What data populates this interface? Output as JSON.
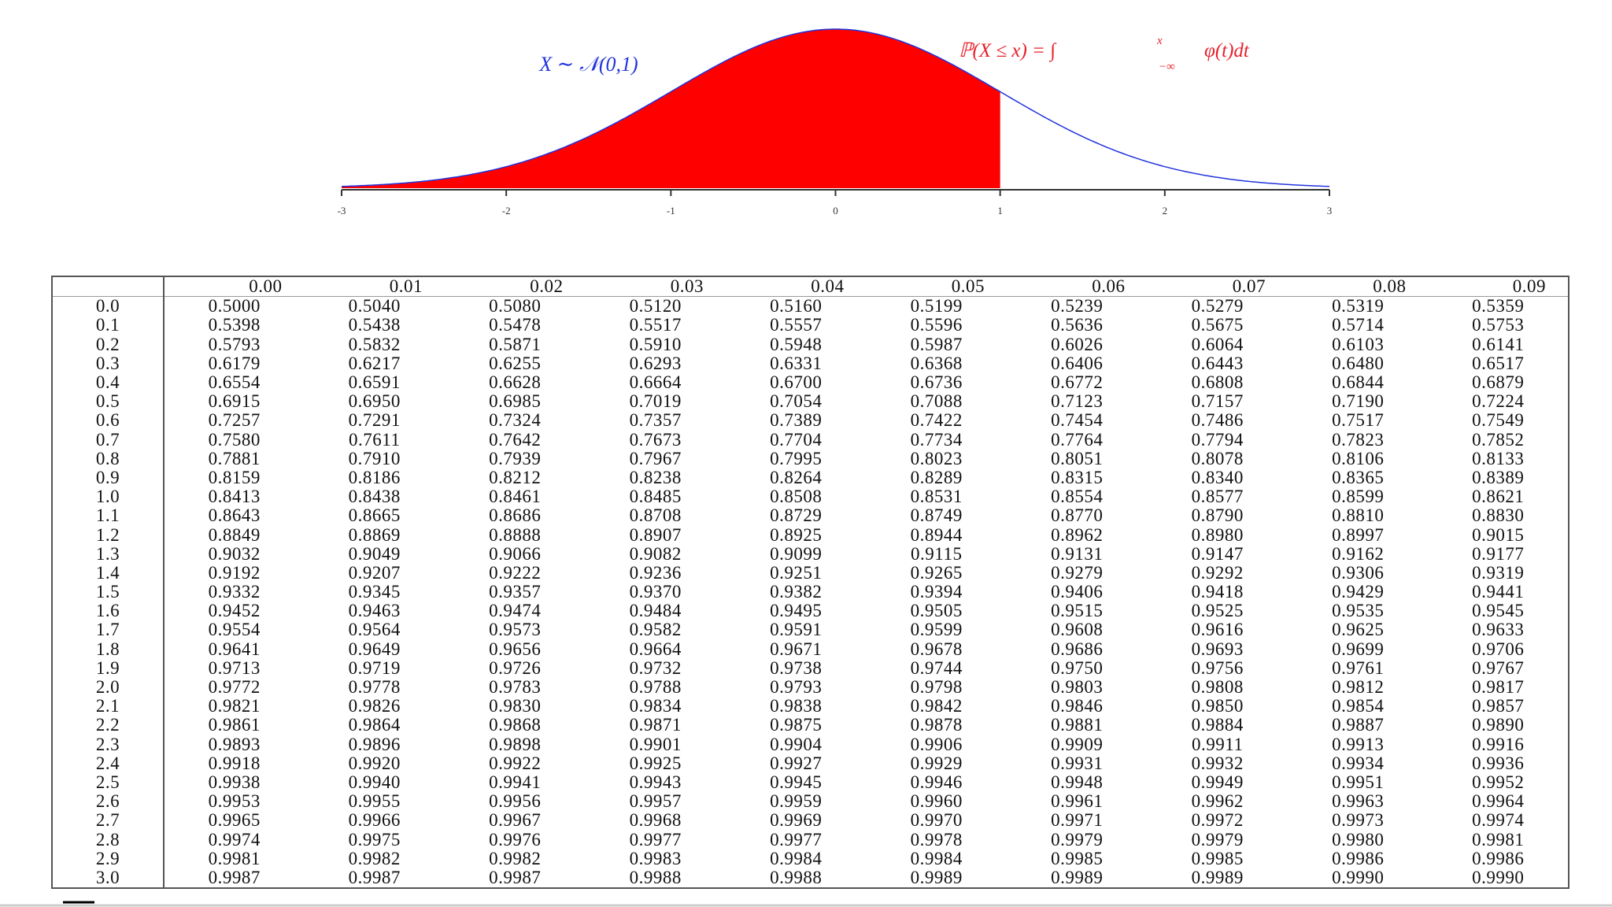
{
  "figure": {
    "annotations": {
      "distribution": "X ∼ 𝒩(0,1)",
      "cdf_lhs": "ℙ(X ≤ x) = ∫",
      "cdf_upper": "x",
      "cdf_lower": "−∞",
      "cdf_rhs": "φ(t)dt"
    },
    "xticks": [
      -3,
      -2,
      -1,
      0,
      1,
      2,
      3
    ],
    "shaded_to": 1
  },
  "table": {
    "columns": [
      "0.00",
      "0.01",
      "0.02",
      "0.03",
      "0.04",
      "0.05",
      "0.06",
      "0.07",
      "0.08",
      "0.09"
    ],
    "rows": [
      {
        "label": "0.0",
        "values": [
          "0.5000",
          "0.5040",
          "0.5080",
          "0.5120",
          "0.5160",
          "0.5199",
          "0.5239",
          "0.5279",
          "0.5319",
          "0.5359"
        ]
      },
      {
        "label": "0.1",
        "values": [
          "0.5398",
          "0.5438",
          "0.5478",
          "0.5517",
          "0.5557",
          "0.5596",
          "0.5636",
          "0.5675",
          "0.5714",
          "0.5753"
        ]
      },
      {
        "label": "0.2",
        "values": [
          "0.5793",
          "0.5832",
          "0.5871",
          "0.5910",
          "0.5948",
          "0.5987",
          "0.6026",
          "0.6064",
          "0.6103",
          "0.6141"
        ]
      },
      {
        "label": "0.3",
        "values": [
          "0.6179",
          "0.6217",
          "0.6255",
          "0.6293",
          "0.6331",
          "0.6368",
          "0.6406",
          "0.6443",
          "0.6480",
          "0.6517"
        ]
      },
      {
        "label": "0.4",
        "values": [
          "0.6554",
          "0.6591",
          "0.6628",
          "0.6664",
          "0.6700",
          "0.6736",
          "0.6772",
          "0.6808",
          "0.6844",
          "0.6879"
        ]
      },
      {
        "label": "0.5",
        "values": [
          "0.6915",
          "0.6950",
          "0.6985",
          "0.7019",
          "0.7054",
          "0.7088",
          "0.7123",
          "0.7157",
          "0.7190",
          "0.7224"
        ]
      },
      {
        "label": "0.6",
        "values": [
          "0.7257",
          "0.7291",
          "0.7324",
          "0.7357",
          "0.7389",
          "0.7422",
          "0.7454",
          "0.7486",
          "0.7517",
          "0.7549"
        ]
      },
      {
        "label": "0.7",
        "values": [
          "0.7580",
          "0.7611",
          "0.7642",
          "0.7673",
          "0.7704",
          "0.7734",
          "0.7764",
          "0.7794",
          "0.7823",
          "0.7852"
        ]
      },
      {
        "label": "0.8",
        "values": [
          "0.7881",
          "0.7910",
          "0.7939",
          "0.7967",
          "0.7995",
          "0.8023",
          "0.8051",
          "0.8078",
          "0.8106",
          "0.8133"
        ]
      },
      {
        "label": "0.9",
        "values": [
          "0.8159",
          "0.8186",
          "0.8212",
          "0.8238",
          "0.8264",
          "0.8289",
          "0.8315",
          "0.8340",
          "0.8365",
          "0.8389"
        ]
      },
      {
        "label": "1.0",
        "values": [
          "0.8413",
          "0.8438",
          "0.8461",
          "0.8485",
          "0.8508",
          "0.8531",
          "0.8554",
          "0.8577",
          "0.8599",
          "0.8621"
        ]
      },
      {
        "label": "1.1",
        "values": [
          "0.8643",
          "0.8665",
          "0.8686",
          "0.8708",
          "0.8729",
          "0.8749",
          "0.8770",
          "0.8790",
          "0.8810",
          "0.8830"
        ]
      },
      {
        "label": "1.2",
        "values": [
          "0.8849",
          "0.8869",
          "0.8888",
          "0.8907",
          "0.8925",
          "0.8944",
          "0.8962",
          "0.8980",
          "0.8997",
          "0.9015"
        ]
      },
      {
        "label": "1.3",
        "values": [
          "0.9032",
          "0.9049",
          "0.9066",
          "0.9082",
          "0.9099",
          "0.9115",
          "0.9131",
          "0.9147",
          "0.9162",
          "0.9177"
        ]
      },
      {
        "label": "1.4",
        "values": [
          "0.9192",
          "0.9207",
          "0.9222",
          "0.9236",
          "0.9251",
          "0.9265",
          "0.9279",
          "0.9292",
          "0.9306",
          "0.9319"
        ]
      },
      {
        "label": "1.5",
        "values": [
          "0.9332",
          "0.9345",
          "0.9357",
          "0.9370",
          "0.9382",
          "0.9394",
          "0.9406",
          "0.9418",
          "0.9429",
          "0.9441"
        ]
      },
      {
        "label": "1.6",
        "values": [
          "0.9452",
          "0.9463",
          "0.9474",
          "0.9484",
          "0.9495",
          "0.9505",
          "0.9515",
          "0.9525",
          "0.9535",
          "0.9545"
        ]
      },
      {
        "label": "1.7",
        "values": [
          "0.9554",
          "0.9564",
          "0.9573",
          "0.9582",
          "0.9591",
          "0.9599",
          "0.9608",
          "0.9616",
          "0.9625",
          "0.9633"
        ]
      },
      {
        "label": "1.8",
        "values": [
          "0.9641",
          "0.9649",
          "0.9656",
          "0.9664",
          "0.9671",
          "0.9678",
          "0.9686",
          "0.9693",
          "0.9699",
          "0.9706"
        ]
      },
      {
        "label": "1.9",
        "values": [
          "0.9713",
          "0.9719",
          "0.9726",
          "0.9732",
          "0.9738",
          "0.9744",
          "0.9750",
          "0.9756",
          "0.9761",
          "0.9767"
        ]
      },
      {
        "label": "2.0",
        "values": [
          "0.9772",
          "0.9778",
          "0.9783",
          "0.9788",
          "0.9793",
          "0.9798",
          "0.9803",
          "0.9808",
          "0.9812",
          "0.9817"
        ]
      },
      {
        "label": "2.1",
        "values": [
          "0.9821",
          "0.9826",
          "0.9830",
          "0.9834",
          "0.9838",
          "0.9842",
          "0.9846",
          "0.9850",
          "0.9854",
          "0.9857"
        ]
      },
      {
        "label": "2.2",
        "values": [
          "0.9861",
          "0.9864",
          "0.9868",
          "0.9871",
          "0.9875",
          "0.9878",
          "0.9881",
          "0.9884",
          "0.9887",
          "0.9890"
        ]
      },
      {
        "label": "2.3",
        "values": [
          "0.9893",
          "0.9896",
          "0.9898",
          "0.9901",
          "0.9904",
          "0.9906",
          "0.9909",
          "0.9911",
          "0.9913",
          "0.9916"
        ]
      },
      {
        "label": "2.4",
        "values": [
          "0.9918",
          "0.9920",
          "0.9922",
          "0.9925",
          "0.9927",
          "0.9929",
          "0.9931",
          "0.9932",
          "0.9934",
          "0.9936"
        ]
      },
      {
        "label": "2.5",
        "values": [
          "0.9938",
          "0.9940",
          "0.9941",
          "0.9943",
          "0.9945",
          "0.9946",
          "0.9948",
          "0.9949",
          "0.9951",
          "0.9952"
        ]
      },
      {
        "label": "2.6",
        "values": [
          "0.9953",
          "0.9955",
          "0.9956",
          "0.9957",
          "0.9959",
          "0.9960",
          "0.9961",
          "0.9962",
          "0.9963",
          "0.9964"
        ]
      },
      {
        "label": "2.7",
        "values": [
          "0.9965",
          "0.9966",
          "0.9967",
          "0.9968",
          "0.9969",
          "0.9970",
          "0.9971",
          "0.9972",
          "0.9973",
          "0.9974"
        ]
      },
      {
        "label": "2.8",
        "values": [
          "0.9974",
          "0.9975",
          "0.9976",
          "0.9977",
          "0.9977",
          "0.9978",
          "0.9979",
          "0.9979",
          "0.9980",
          "0.9981"
        ]
      },
      {
        "label": "2.9",
        "values": [
          "0.9981",
          "0.9982",
          "0.9982",
          "0.9983",
          "0.9984",
          "0.9984",
          "0.9985",
          "0.9985",
          "0.9986",
          "0.9986"
        ]
      },
      {
        "label": "3.0",
        "values": [
          "0.9987",
          "0.9987",
          "0.9987",
          "0.9988",
          "0.9988",
          "0.9989",
          "0.9989",
          "0.9989",
          "0.9990",
          "0.9990"
        ]
      }
    ]
  }
}
